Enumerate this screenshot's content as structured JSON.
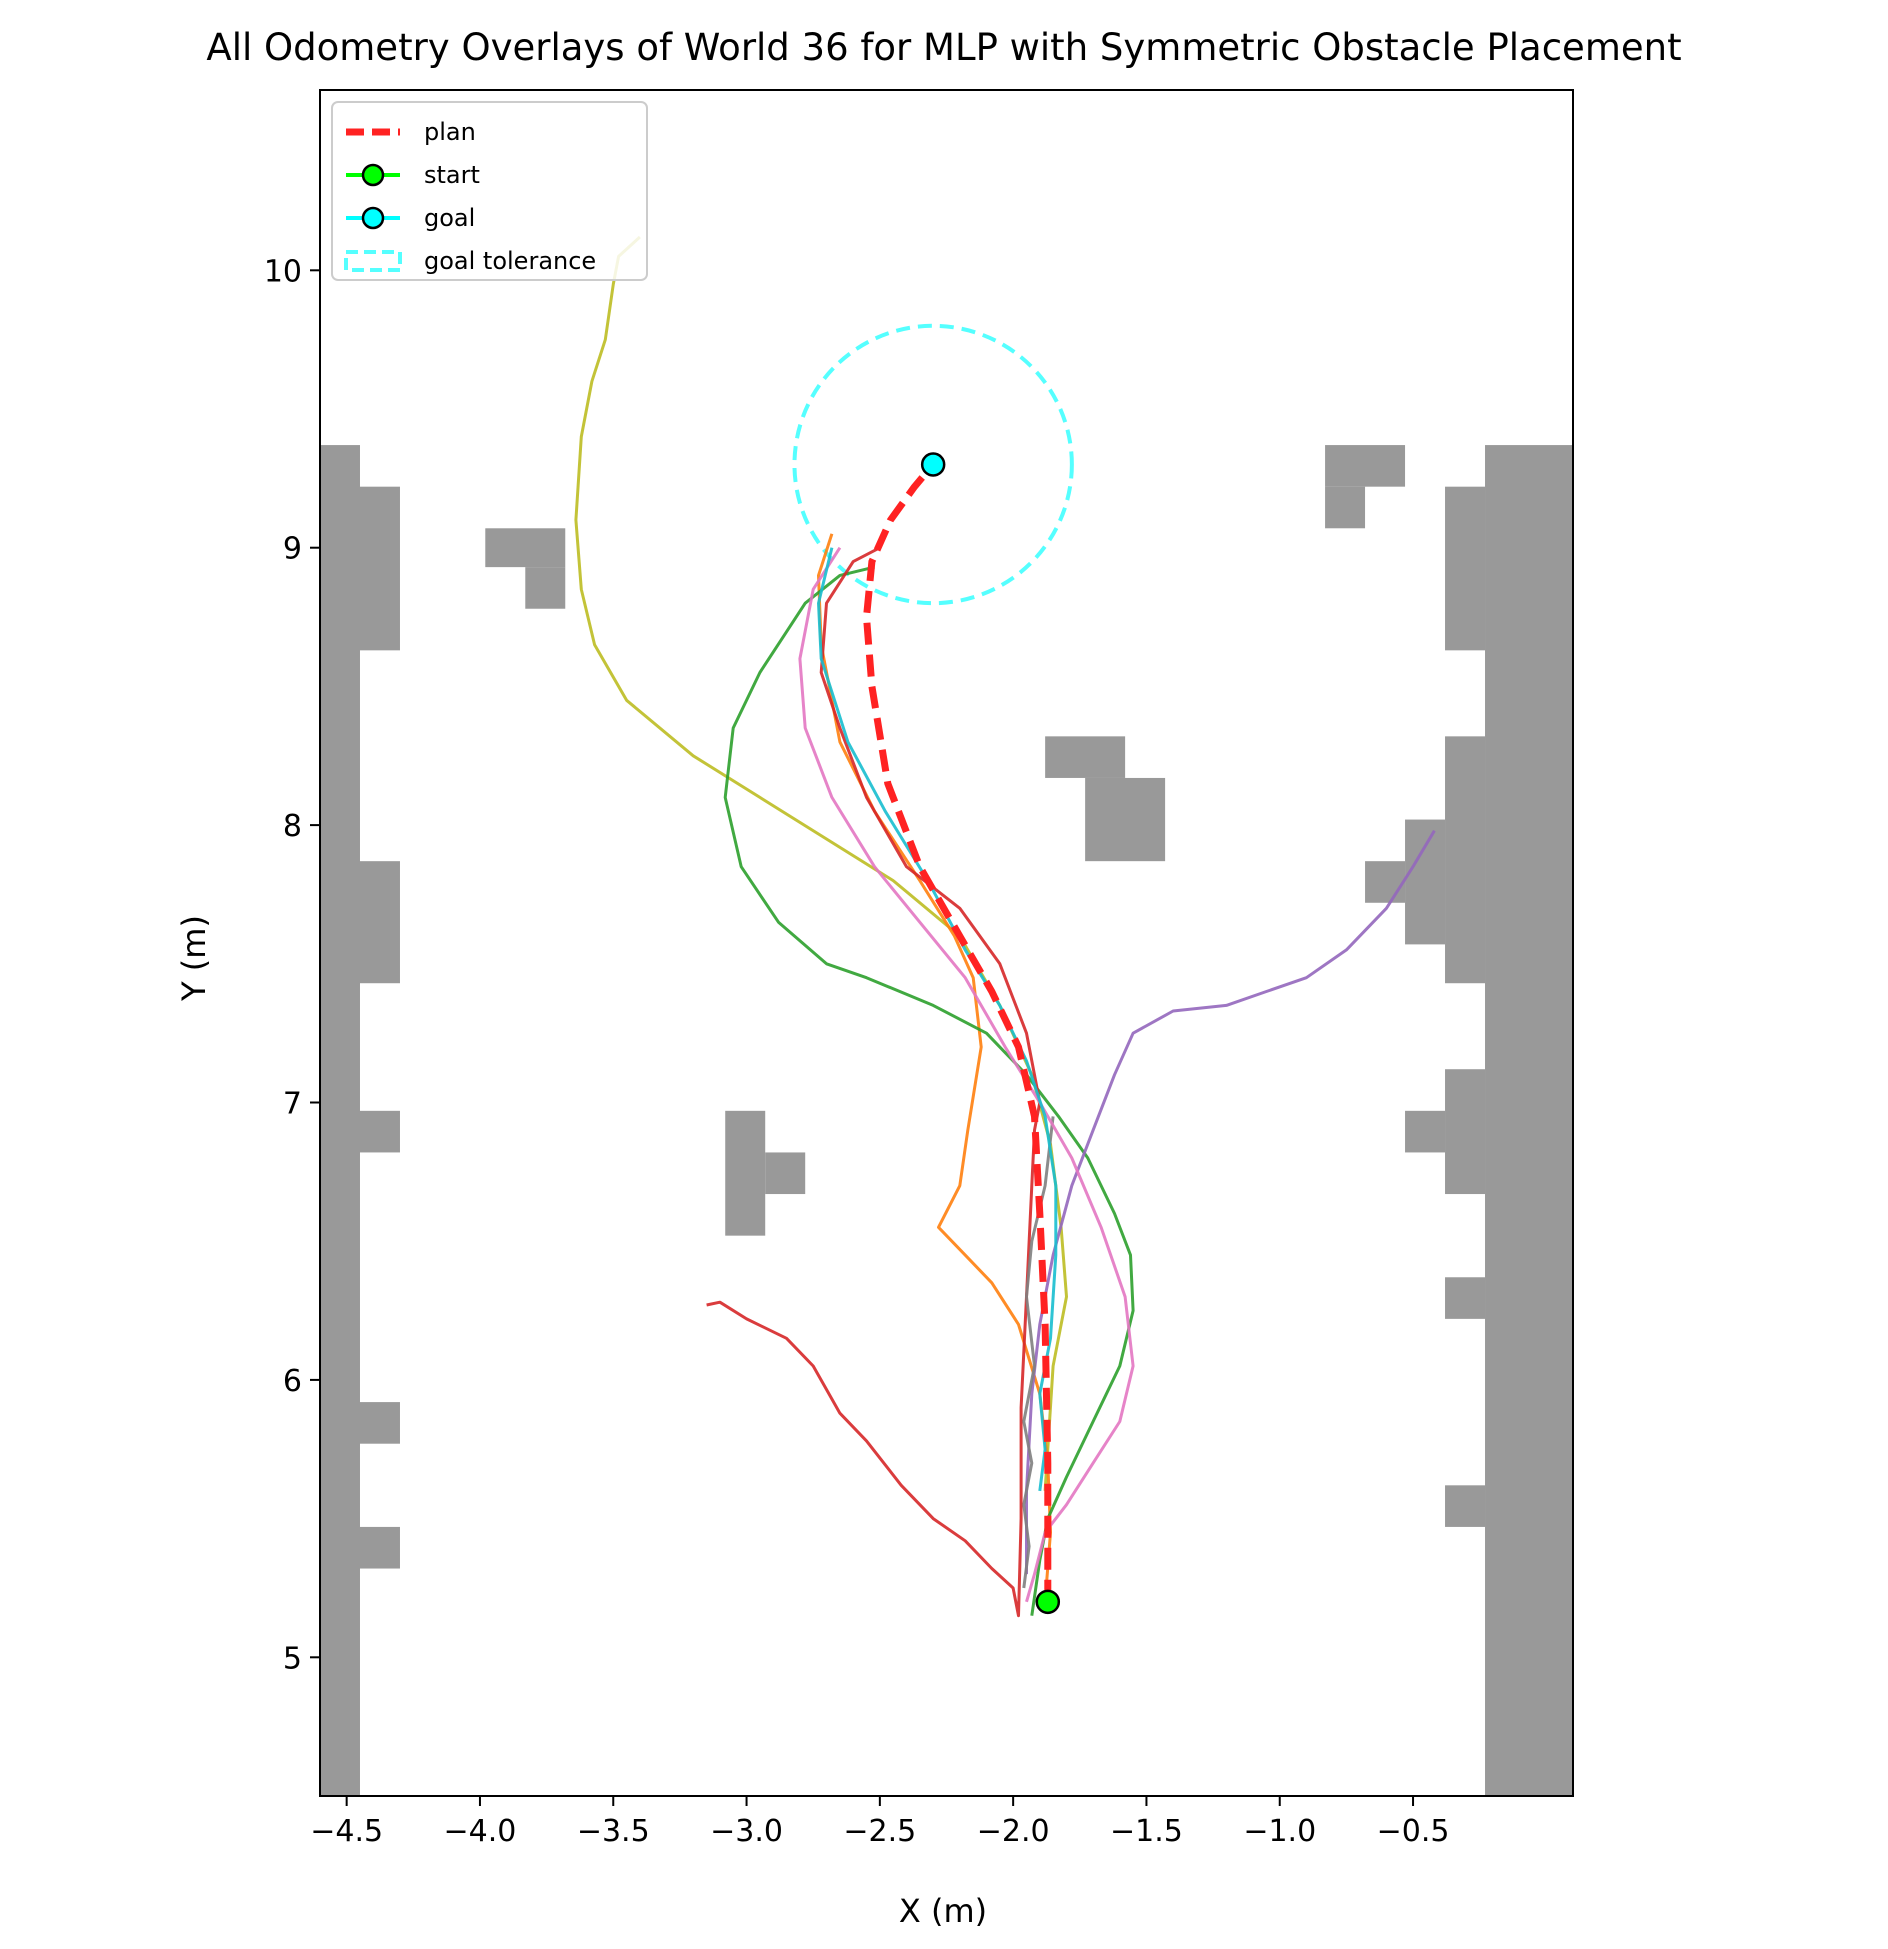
{
  "chart_data": {
    "type": "line",
    "title": "All Odometry Overlays of World 36 for MLP with Symmetric Obstacle Placement",
    "xlabel": "X (m)",
    "ylabel": "Y (m)",
    "xlim": [
      -4.6,
      0.1
    ],
    "ylim": [
      4.5,
      10.65
    ],
    "xticks": [
      -4.5,
      -4.0,
      -3.5,
      -3.0,
      -2.5,
      -2.0,
      -1.5,
      -1.0,
      -0.5
    ],
    "xtick_labels": [
      "−4.5",
      "−4.0",
      "−3.5",
      "−3.0",
      "−2.5",
      "−2.0",
      "−1.5",
      "−1.0",
      "−0.5"
    ],
    "yticks": [
      5,
      6,
      7,
      8,
      9,
      10
    ],
    "ytick_labels": [
      "5",
      "6",
      "7",
      "8",
      "9",
      "10"
    ],
    "legend": {
      "position": "top-left",
      "entries": [
        {
          "label": "plan",
          "color": "#ff2222",
          "style": "dashed-line"
        },
        {
          "label": "start",
          "color": "#00ff00",
          "style": "line-marker"
        },
        {
          "label": "goal",
          "color": "#00ffff",
          "style": "line-marker"
        },
        {
          "label": "goal tolerance",
          "color": "#55ffff",
          "style": "dashed-box"
        }
      ]
    },
    "start": {
      "x": -1.87,
      "y": 5.2,
      "color": "#00ff00"
    },
    "goal": {
      "x": -2.3,
      "y": 9.3,
      "color": "#00ffff"
    },
    "goal_tolerance": {
      "x": -2.3,
      "y": 9.3,
      "radius": 0.5,
      "color": "#55ffff"
    },
    "obstacle_color": "#999999",
    "obstacles": [
      {
        "x0": -4.6,
        "x1": -4.45,
        "y0": 4.5,
        "y1": 9.37
      },
      {
        "x0": -4.45,
        "x1": -4.3,
        "y0": 8.63,
        "y1": 9.22
      },
      {
        "x0": -4.45,
        "x1": -4.3,
        "y0": 7.43,
        "y1": 7.87
      },
      {
        "x0": -4.45,
        "x1": -4.3,
        "y0": 6.82,
        "y1": 6.97
      },
      {
        "x0": -4.45,
        "x1": -4.3,
        "y0": 5.77,
        "y1": 5.92
      },
      {
        "x0": -4.45,
        "x1": -4.3,
        "y0": 5.32,
        "y1": 5.47
      },
      {
        "x0": -3.98,
        "x1": -3.68,
        "y0": 8.93,
        "y1": 9.07
      },
      {
        "x0": -3.83,
        "x1": -3.68,
        "y0": 8.78,
        "y1": 8.93
      },
      {
        "x0": -3.08,
        "x1": -2.93,
        "y0": 6.52,
        "y1": 6.97
      },
      {
        "x0": -2.93,
        "x1": -2.78,
        "y0": 6.67,
        "y1": 6.82
      },
      {
        "x0": -1.88,
        "x1": -1.58,
        "y0": 8.17,
        "y1": 8.32
      },
      {
        "x0": -1.73,
        "x1": -1.43,
        "y0": 7.87,
        "y1": 8.17
      },
      {
        "x0": -0.83,
        "x1": -0.53,
        "y0": 9.22,
        "y1": 9.37
      },
      {
        "x0": -0.83,
        "x1": -0.68,
        "y0": 9.07,
        "y1": 9.22
      },
      {
        "x0": -0.68,
        "x1": -0.53,
        "y0": 7.72,
        "y1": 7.87
      },
      {
        "x0": -0.53,
        "x1": -0.38,
        "y0": 7.57,
        "y1": 8.02
      },
      {
        "x0": -0.38,
        "x1": -0.23,
        "y0": 8.63,
        "y1": 9.22
      },
      {
        "x0": -0.38,
        "x1": -0.23,
        "y0": 7.43,
        "y1": 8.32
      },
      {
        "x0": -0.38,
        "x1": -0.23,
        "y0": 6.67,
        "y1": 7.12
      },
      {
        "x0": -0.53,
        "x1": -0.38,
        "y0": 6.82,
        "y1": 6.97
      },
      {
        "x0": -0.38,
        "x1": -0.23,
        "y0": 6.22,
        "y1": 6.37
      },
      {
        "x0": -0.38,
        "x1": -0.23,
        "y0": 5.47,
        "y1": 5.62
      },
      {
        "x0": -0.23,
        "x1": 0.1,
        "y0": 4.5,
        "y1": 9.37
      }
    ],
    "plan": {
      "name": "plan",
      "color": "#ff2222",
      "x": [
        -1.87,
        -1.87,
        -1.88,
        -1.9,
        -1.92,
        -1.98,
        -2.08,
        -2.2,
        -2.35,
        -2.47,
        -2.53,
        -2.55,
        -2.53,
        -2.46,
        -2.37,
        -2.3
      ],
      "y": [
        5.2,
        5.7,
        6.2,
        6.6,
        6.95,
        7.2,
        7.4,
        7.6,
        7.85,
        8.15,
        8.5,
        8.75,
        8.95,
        9.1,
        9.22,
        9.3
      ]
    },
    "series": [
      {
        "name": "run-olive",
        "color": "#bcbd22",
        "x": [
          -3.4,
          -3.48,
          -3.5,
          -3.53,
          -3.58,
          -3.62,
          -3.64,
          -3.62,
          -3.57,
          -3.45,
          -3.2,
          -2.95,
          -2.7,
          -2.45,
          -2.2,
          -2.05,
          -1.93,
          -1.86,
          -1.82,
          -1.8,
          -1.85,
          -1.88
        ],
        "y": [
          10.12,
          10.05,
          9.95,
          9.75,
          9.6,
          9.4,
          9.1,
          8.85,
          8.65,
          8.45,
          8.25,
          8.1,
          7.95,
          7.8,
          7.6,
          7.35,
          7.1,
          6.85,
          6.55,
          6.3,
          6.05,
          5.6
        ]
      },
      {
        "name": "run-orange",
        "color": "#ff7f0e",
        "x": [
          -2.68,
          -2.73,
          -2.72,
          -2.65,
          -2.52,
          -2.35,
          -2.22,
          -2.15,
          -2.12,
          -2.17,
          -2.2,
          -2.28,
          -2.18,
          -2.08,
          -1.98,
          -1.9,
          -1.87,
          -1.86,
          -1.88
        ],
        "y": [
          9.05,
          8.9,
          8.65,
          8.3,
          8.05,
          7.8,
          7.6,
          7.45,
          7.2,
          6.9,
          6.7,
          6.55,
          6.45,
          6.35,
          6.2,
          5.95,
          5.7,
          5.45,
          5.2
        ]
      },
      {
        "name": "run-green",
        "color": "#2ca02c",
        "x": [
          -2.52,
          -2.65,
          -2.78,
          -2.95,
          -3.05,
          -3.08,
          -3.02,
          -2.88,
          -2.7,
          -2.55,
          -2.3,
          -2.1,
          -1.95,
          -1.83,
          -1.72,
          -1.62,
          -1.56,
          -1.55,
          -1.6,
          -1.7,
          -1.8,
          -1.87,
          -1.9,
          -1.93
        ],
        "y": [
          8.93,
          8.9,
          8.8,
          8.55,
          8.35,
          8.1,
          7.85,
          7.65,
          7.5,
          7.45,
          7.35,
          7.25,
          7.1,
          6.95,
          6.8,
          6.6,
          6.45,
          6.25,
          6.05,
          5.85,
          5.65,
          5.5,
          5.35,
          5.15
        ]
      },
      {
        "name": "run-red",
        "color": "#d62728",
        "x": [
          -3.15,
          -3.1,
          -3.0,
          -2.85,
          -2.75,
          -2.65,
          -2.55,
          -2.42,
          -2.3,
          -2.18,
          -2.08,
          -2.0,
          -1.98,
          -1.97,
          -1.97,
          -1.95,
          -1.93,
          -1.92,
          -1.9,
          -1.95,
          -2.05,
          -2.2,
          -2.4,
          -2.55,
          -2.65,
          -2.72,
          -2.7,
          -2.6,
          -2.5
        ],
        "y": [
          6.27,
          6.28,
          6.22,
          6.15,
          6.05,
          5.88,
          5.78,
          5.62,
          5.5,
          5.42,
          5.32,
          5.25,
          5.15,
          5.5,
          5.9,
          6.3,
          6.7,
          6.9,
          7.0,
          7.25,
          7.5,
          7.7,
          7.85,
          8.1,
          8.35,
          8.55,
          8.8,
          8.95,
          9.0
        ]
      },
      {
        "name": "run-purple",
        "color": "#9467bd",
        "x": [
          -0.42,
          -0.5,
          -0.6,
          -0.75,
          -0.9,
          -1.05,
          -1.2,
          -1.4,
          -1.55,
          -1.62,
          -1.7,
          -1.78,
          -1.85,
          -1.9,
          -1.93,
          -1.95,
          -1.95
        ],
        "y": [
          7.98,
          7.85,
          7.7,
          7.55,
          7.45,
          7.4,
          7.35,
          7.33,
          7.25,
          7.1,
          6.9,
          6.7,
          6.45,
          6.2,
          5.95,
          5.6,
          5.3
        ]
      },
      {
        "name": "run-grey",
        "color": "#7f7f7f",
        "x": [
          -1.85,
          -1.88,
          -1.93,
          -1.95,
          -1.92,
          -1.96,
          -1.93,
          -1.96,
          -1.94,
          -1.96
        ],
        "y": [
          6.95,
          6.7,
          6.5,
          6.3,
          6.05,
          5.85,
          5.7,
          5.55,
          5.4,
          5.25
        ]
      },
      {
        "name": "run-pink",
        "color": "#e377c2",
        "x": [
          -2.65,
          -2.75,
          -2.8,
          -2.78,
          -2.68,
          -2.52,
          -2.35,
          -2.18,
          -2.03,
          -1.9,
          -1.78,
          -1.67,
          -1.58,
          -1.55,
          -1.6,
          -1.7,
          -1.8,
          -1.88,
          -1.92,
          -1.95
        ],
        "y": [
          9.0,
          8.85,
          8.6,
          8.35,
          8.1,
          7.85,
          7.65,
          7.45,
          7.2,
          7.0,
          6.8,
          6.55,
          6.3,
          6.05,
          5.85,
          5.7,
          5.55,
          5.45,
          5.3,
          5.2
        ]
      },
      {
        "name": "run-cyan",
        "color": "#17becf",
        "x": [
          -2.68,
          -2.73,
          -2.72,
          -2.62,
          -2.48,
          -2.32,
          -2.18,
          -2.05,
          -1.95,
          -1.88,
          -1.84,
          -1.84,
          -1.86,
          -1.9,
          -1.88,
          -1.9
        ],
        "y": [
          9.0,
          8.8,
          8.6,
          8.3,
          8.05,
          7.8,
          7.55,
          7.35,
          7.15,
          6.95,
          6.7,
          6.45,
          6.15,
          5.95,
          5.75,
          5.6
        ]
      }
    ]
  }
}
